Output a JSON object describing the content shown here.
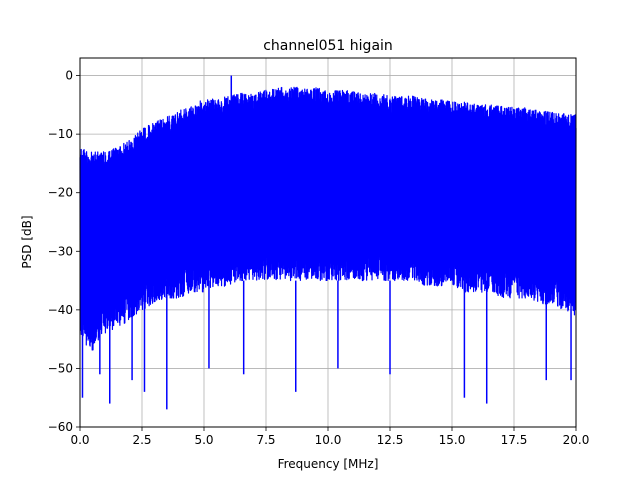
{
  "chart_data": {
    "type": "line",
    "title": "channel051 higain",
    "xlabel": "Frequency [MHz]",
    "ylabel": "PSD [dB]",
    "xlim": [
      0,
      20
    ],
    "ylim": [
      -60,
      3
    ],
    "x_ticks": [
      0,
      2.5,
      5,
      7.5,
      10,
      12.5,
      15,
      17.5,
      20
    ],
    "x_tick_labels": [
      "0.0",
      "2.5",
      "5.0",
      "7.5",
      "10.0",
      "12.5",
      "15.0",
      "17.5",
      "20.0"
    ],
    "y_ticks": [
      -60,
      -50,
      -40,
      -30,
      -20,
      -10,
      0
    ],
    "y_tick_labels": [
      "−60",
      "−50",
      "−40",
      "−30",
      "−20",
      "−10",
      "0"
    ],
    "grid": true,
    "series": [
      {
        "color": "#0000ff",
        "note_envelope": "dense noise trace; upper and typical-lower envelopes",
        "x": [
          0,
          0.5,
          1,
          1.5,
          2,
          2.5,
          3,
          3.5,
          4,
          4.5,
          5,
          5.5,
          6,
          6.5,
          7,
          7.5,
          8,
          8.5,
          9,
          9.5,
          10,
          10.5,
          11,
          11.5,
          12,
          12.5,
          13,
          13.5,
          14,
          14.5,
          15,
          15.5,
          16,
          16.5,
          17,
          17.5,
          18,
          18.5,
          19,
          19.5,
          20
        ],
        "upper": [
          -12,
          -13,
          -13,
          -12,
          -11,
          -9,
          -8,
          -7,
          -6,
          -5,
          -4,
          -4,
          -3.5,
          -3,
          -3,
          -2.5,
          -2,
          -2,
          -2,
          -2,
          -2.5,
          -2.5,
          -2.5,
          -3,
          -3,
          -3.5,
          -3.5,
          -3.5,
          -4,
          -4,
          -4.5,
          -4.5,
          -5,
          -5,
          -5,
          -5.5,
          -5.5,
          -6,
          -6,
          -6.5,
          -6.5
        ],
        "lower": [
          -45,
          -47,
          -44,
          -43,
          -42,
          -40,
          -39,
          -38,
          -38,
          -37,
          -37,
          -36,
          -36,
          -35,
          -35,
          -35,
          -35,
          -35,
          -35,
          -35,
          -35,
          -35,
          -35,
          -35,
          -35,
          -35,
          -35,
          -35,
          -36,
          -36,
          -36,
          -37,
          -37,
          -37,
          -38,
          -38,
          -38,
          -39,
          -39,
          -40,
          -41
        ],
        "peak": {
          "x": 6.1,
          "y": 0
        },
        "dips": [
          {
            "x": 0.1,
            "y": -55
          },
          {
            "x": 0.8,
            "y": -51
          },
          {
            "x": 1.2,
            "y": -56
          },
          {
            "x": 2.1,
            "y": -52
          },
          {
            "x": 2.6,
            "y": -54
          },
          {
            "x": 3.5,
            "y": -57
          },
          {
            "x": 5.2,
            "y": -50
          },
          {
            "x": 6.6,
            "y": -51
          },
          {
            "x": 8.7,
            "y": -54
          },
          {
            "x": 10.4,
            "y": -50
          },
          {
            "x": 12.5,
            "y": -51
          },
          {
            "x": 15.5,
            "y": -55
          },
          {
            "x": 16.4,
            "y": -56
          },
          {
            "x": 18.8,
            "y": -52
          },
          {
            "x": 19.8,
            "y": -52
          }
        ]
      }
    ]
  }
}
